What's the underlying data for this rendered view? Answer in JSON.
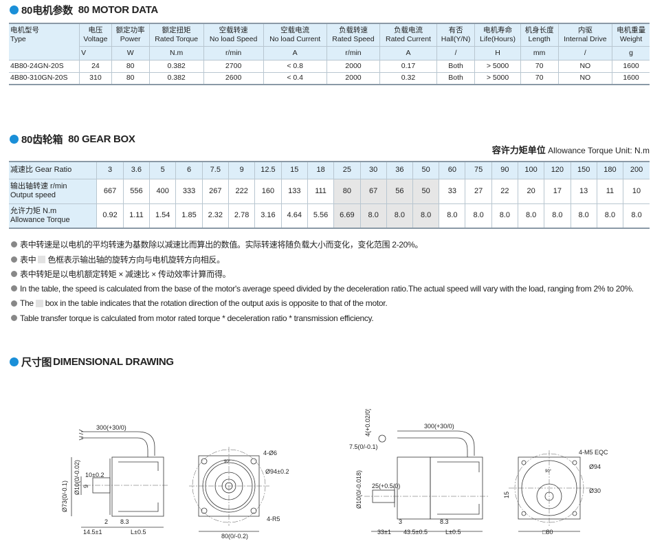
{
  "motor_section": {
    "title_cn": "80电机参数",
    "title_en": "80 MOTOR DATA"
  },
  "motor_table": {
    "headers": [
      {
        "cn": "电机型号",
        "en": "Type",
        "unit": ""
      },
      {
        "cn": "电压",
        "en": "Voltage",
        "unit": "V"
      },
      {
        "cn": "额定功率",
        "en": "Power",
        "unit": "W"
      },
      {
        "cn": "额定扭矩",
        "en": "Rated Torque",
        "unit": "N.m"
      },
      {
        "cn": "空载转速",
        "en": "No load Speed",
        "unit": "r/min"
      },
      {
        "cn": "空载电流",
        "en": "No load Current",
        "unit": "A"
      },
      {
        "cn": "负载转速",
        "en": "Rated Speed",
        "unit": "r/min"
      },
      {
        "cn": "负载电流",
        "en": "Rated Current",
        "unit": "A"
      },
      {
        "cn": "有否",
        "en": "Hall(Y/N)",
        "unit": "/"
      },
      {
        "cn": "电机寿命",
        "en": "Life(Hours)",
        "unit": "H"
      },
      {
        "cn": "机身长度",
        "en": "Length",
        "unit": "mm"
      },
      {
        "cn": "内驱",
        "en": "Internal Drive",
        "unit": "/"
      },
      {
        "cn": "电机重量",
        "en": "Weight",
        "unit": "g"
      }
    ],
    "rows": [
      [
        "4B80-24GN-20S",
        "24",
        "80",
        "0.382",
        "2700",
        "< 0.8",
        "2000",
        "0.17",
        "Both",
        "> 5000",
        "70",
        "NO",
        "1600"
      ],
      [
        "4B80-310GN-20S",
        "310",
        "80",
        "0.382",
        "2600",
        "< 0.4",
        "2000",
        "0.32",
        "Both",
        "> 5000",
        "70",
        "NO",
        "1600"
      ]
    ]
  },
  "gear_section": {
    "title_cn": "80齿轮箱",
    "title_en": "80 GEAR BOX",
    "unit_cn": "容许力矩单位",
    "unit_en": "Allowance Torque Unit: N.m"
  },
  "gear_table": {
    "ratio_label": "减速比 Gear Ratio",
    "speed_label_cn": "输出轴转速 r/min",
    "speed_label_en": "Output speed",
    "torque_label_cn": "允许力矩 N.m",
    "torque_label_en": "Allowance Torque",
    "ratios": [
      "3",
      "3.6",
      "5",
      "6",
      "7.5",
      "9",
      "12.5",
      "15",
      "18",
      "25",
      "30",
      "36",
      "50",
      "60",
      "75",
      "90",
      "100",
      "120",
      "150",
      "180",
      "200"
    ],
    "speeds": [
      "667",
      "556",
      "400",
      "333",
      "267",
      "222",
      "160",
      "133",
      "111",
      "80",
      "67",
      "56",
      "50",
      "33",
      "27",
      "22",
      "20",
      "17",
      "13",
      "11",
      "10"
    ],
    "torques": [
      "0.92",
      "1.11",
      "1.54",
      "1.85",
      "2.32",
      "2.78",
      "3.16",
      "4.64",
      "5.56",
      "6.69",
      "8.0",
      "8.0",
      "8.0",
      "8.0",
      "8.0",
      "8.0",
      "8.0",
      "8.0",
      "8.0",
      "8.0",
      "8.0"
    ],
    "highlighted_ratios": [
      "25",
      "30",
      "36",
      "50"
    ],
    "highlight_color": "#e6e6e6"
  },
  "notes": [
    "表中转速是以电机的平均转速为基数除以减速比而算出的数值。实际转速将随负载大小而变化，变化范围 2-20%。",
    {
      "pre": "表中",
      "post": "色框表示输出轴的旋转方向与电机旋转方向相反。"
    },
    "表中转矩是以电机额定转矩 × 减速比 × 传动效率计算而得。",
    "In the table, the speed is calculated from the base of the motor's average speed  divided by the deceleration ratio.The actual speed will vary with the load, ranging from 2% to 20%.",
    {
      "pre": "The",
      "post": "box in the table indicates that the rotation direction of the output axis is opposite to that of the motor."
    },
    "Table transfer torque is calculated from motor rated torque * deceleration ratio * transmission efficiency."
  ],
  "drawing_section": {
    "title_cn": "尺寸图",
    "title_en": "DIMENSIONAL DRAWING"
  },
  "drawing1": {
    "cable": "300(+30/0)",
    "d73": "Ø73(0/-0.1)",
    "d10": "Ø10(0/-0.02)",
    "key": "10±0.2",
    "k9": "9",
    "s2": "2",
    "s83": "8.3",
    "s145": "14.5±1",
    "L": "L±0.5",
    "holes": "4-Ø6",
    "pcd": "Ø94±0.2",
    "r5": "4-R5",
    "w80": "80(0/-0.2)",
    "ang": "90°"
  },
  "drawing2": {
    "cable": "300(+30/0)",
    "k4": "4(+0.02/0)",
    "k75": "7.5(0/-0.1)",
    "d10": "Ø10(0/-0.018)",
    "s25": "25(+0.5/0)",
    "s3": "3",
    "s83": "8.3",
    "s33": "33±1",
    "s435": "43.5±0.5",
    "L": "L±0.5",
    "m5": "4-M5 EQC",
    "d94": "Ø94",
    "d30": "Ø30",
    "s15": "15",
    "w80": "□80",
    "ang": "90°"
  },
  "colors": {
    "accent": "#1a8fd8",
    "header_bg": "#ddeef9"
  }
}
